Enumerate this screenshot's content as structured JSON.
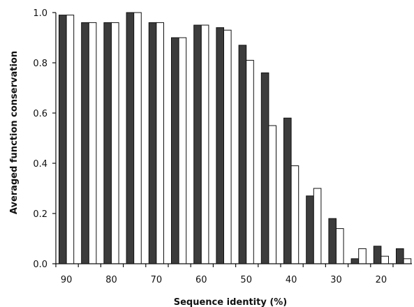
{
  "chart_data": {
    "type": "bar",
    "xlabel": "Sequence identity (%)",
    "ylabel": "Averaged function conservation",
    "x_tick_labels": [
      "90",
      "80",
      "70",
      "60",
      "50",
      "40",
      "30",
      "20"
    ],
    "y_tick_labels": [
      "0.0",
      "0.2",
      "0.4",
      "0.6",
      "0.8",
      "1.0"
    ],
    "ylim": [
      0,
      1
    ],
    "grid": false,
    "legend": "none",
    "categories": [
      "90",
      "85",
      "80",
      "75",
      "70",
      "65",
      "60",
      "55",
      "50",
      "45",
      "40",
      "35",
      "30",
      "25",
      "20",
      "15"
    ],
    "series": [
      {
        "color": "#3c3c3c",
        "values": [
          0.99,
          0.96,
          0.96,
          1.0,
          0.96,
          0.9,
          0.95,
          0.94,
          0.87,
          0.76,
          0.58,
          0.27,
          0.18,
          0.02,
          0.07,
          0.06
        ]
      },
      {
        "color": "#ffffff",
        "values": [
          0.99,
          0.96,
          0.96,
          1.0,
          0.96,
          0.9,
          0.95,
          0.93,
          0.81,
          0.55,
          0.39,
          0.3,
          0.14,
          0.06,
          0.03,
          0.02
        ]
      }
    ]
  }
}
